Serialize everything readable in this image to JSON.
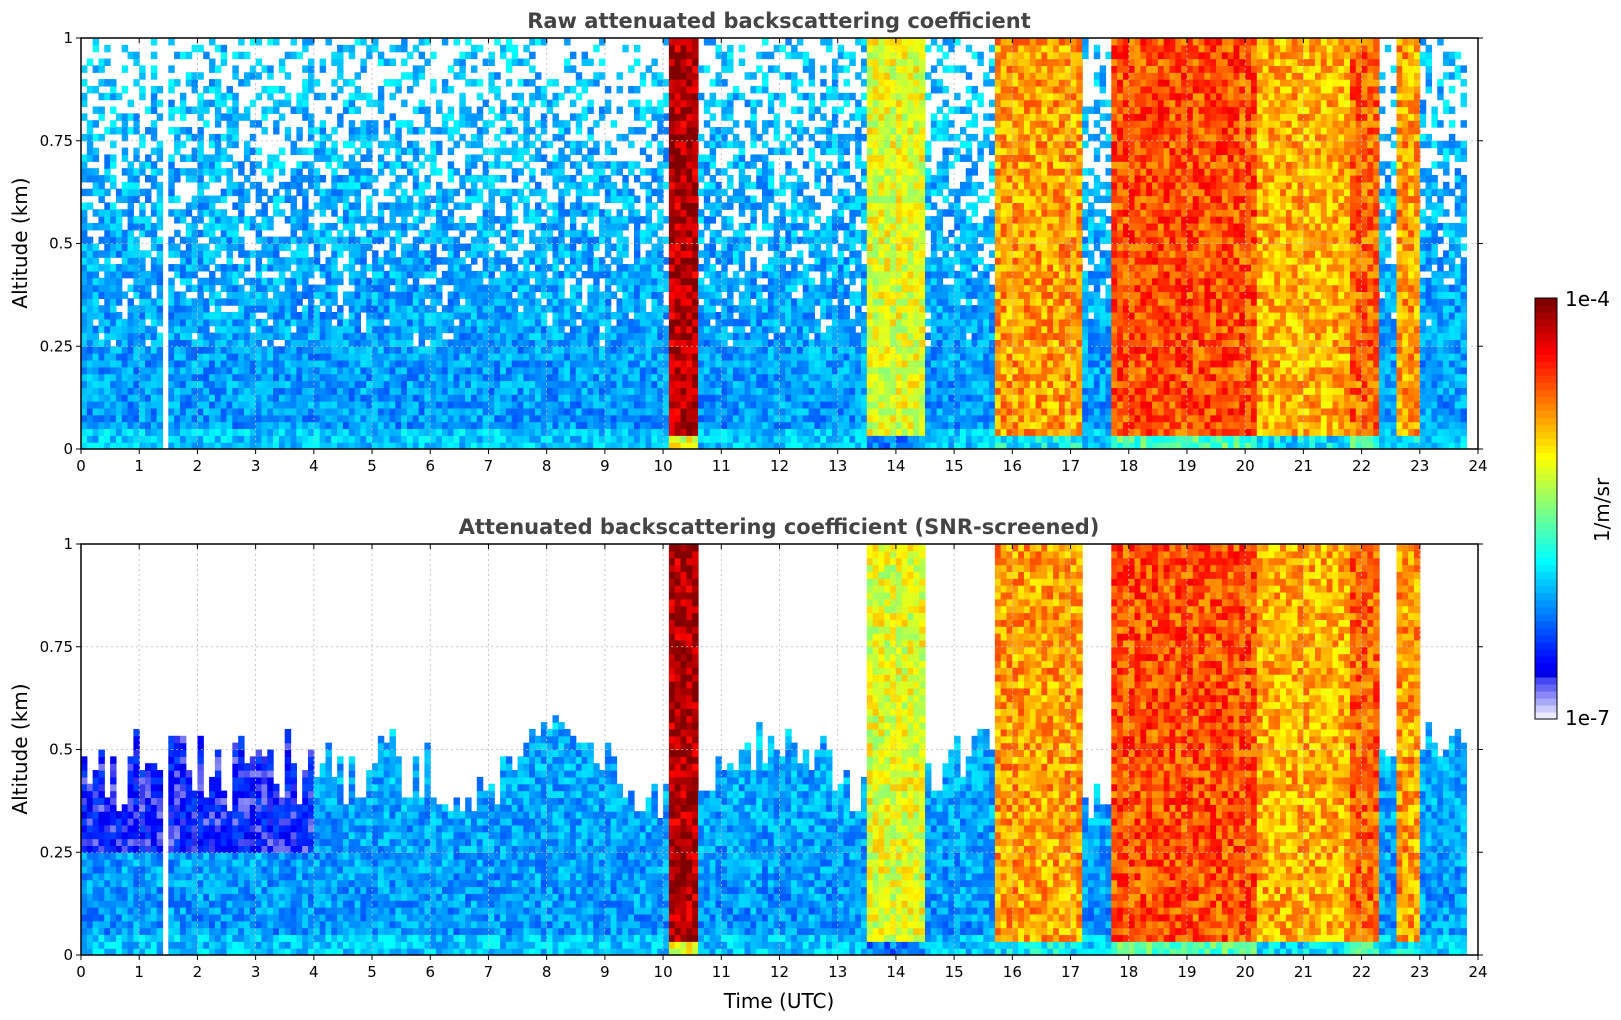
{
  "chart_data": [
    {
      "type": "heatmap",
      "title": "Raw attenuated backscattering coefficient",
      "xlabel": "",
      "ylabel": "Altitude (km)",
      "xlim": [
        0,
        24
      ],
      "ylim": [
        0,
        1
      ],
      "xticks": [
        "0",
        "1",
        "2",
        "3",
        "4",
        "5",
        "6",
        "7",
        "8",
        "9",
        "10",
        "11",
        "12",
        "13",
        "14",
        "15",
        "16",
        "17",
        "18",
        "19",
        "20",
        "21",
        "22",
        "23",
        "24"
      ],
      "yticks": [
        "0",
        "0.25",
        "0.5",
        "0.75",
        "1"
      ],
      "grid": true,
      "gap_hours": [
        [
          1.45,
          1.55
        ],
        [
          23.8,
          24
        ]
      ],
      "value_scale": "log10, 1e-7 to 1e-4 1/m/sr",
      "cloud_bands": [
        {
          "start": 10.1,
          "end": 10.55,
          "level": 0.95
        },
        {
          "start": 13.5,
          "end": 14.5,
          "level": 0.6
        },
        {
          "start": 15.75,
          "end": 17.2,
          "level": 0.72
        },
        {
          "start": 17.75,
          "end": 20.3,
          "level": 0.8
        },
        {
          "start": 20.25,
          "end": 21.8,
          "level": 0.7
        },
        {
          "start": 21.8,
          "end": 22.3,
          "level": 0.78
        },
        {
          "start": 22.6,
          "end": 23.0,
          "level": 0.72
        }
      ]
    },
    {
      "type": "heatmap",
      "title": "Attenuated backscattering coefficient (SNR-screened)",
      "xlabel": "Time (UTC)",
      "ylabel": "Altitude (km)",
      "xlim": [
        0,
        24
      ],
      "ylim": [
        0,
        1
      ],
      "xticks": [
        "0",
        "1",
        "2",
        "3",
        "4",
        "5",
        "6",
        "7",
        "8",
        "9",
        "10",
        "11",
        "12",
        "13",
        "14",
        "15",
        "16",
        "17",
        "18",
        "19",
        "20",
        "21",
        "22",
        "23",
        "24"
      ],
      "yticks": [
        "0",
        "0.25",
        "0.5",
        "0.75",
        "1"
      ],
      "grid": true,
      "gap_hours": [
        [
          1.45,
          1.55
        ],
        [
          23.8,
          24
        ]
      ],
      "value_scale": "log10, 1e-7 to 1e-4 1/m/sr",
      "cloud_bands": [
        {
          "start": 10.1,
          "end": 10.55,
          "level": 0.95
        },
        {
          "start": 13.5,
          "end": 14.5,
          "level": 0.6
        },
        {
          "start": 15.75,
          "end": 17.2,
          "level": 0.72
        },
        {
          "start": 17.75,
          "end": 20.3,
          "level": 0.8
        },
        {
          "start": 20.25,
          "end": 21.8,
          "level": 0.7
        },
        {
          "start": 21.8,
          "end": 22.3,
          "level": 0.78
        },
        {
          "start": 22.6,
          "end": 23.0,
          "level": 0.72
        }
      ]
    }
  ],
  "colorbar": {
    "label": "1/m/sr",
    "max_label": "1e-4",
    "min_label": "1e-7",
    "colormap": "jet"
  },
  "colors": {
    "title": "#444444",
    "grid": "#bbbbbb"
  }
}
